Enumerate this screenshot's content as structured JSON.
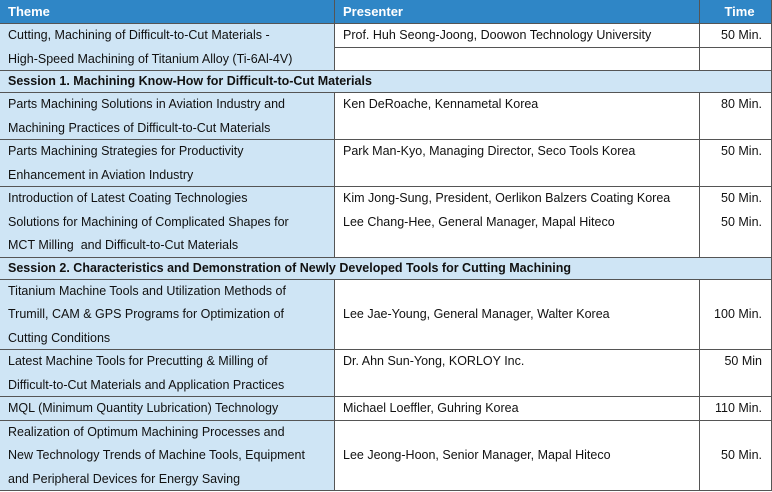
{
  "table": {
    "header": [
      "Theme",
      "Presenter",
      "Time"
    ],
    "rows": [
      {
        "theme": [
          "Cutting, Machining of Difficult-to-Cut Materials -",
          "High-Speed Machining of Titanium Alloy (Ti-6Al-4V)"
        ],
        "presenter": [
          "Prof. Huh Seong-Joong, Doowon Technology University"
        ],
        "time": [
          "50 Min."
        ]
      },
      {
        "session": "Session 1. Machining Know-How for Difficult-to-Cut Materials"
      },
      {
        "theme": [
          "Parts Machining Solutions in Aviation Industry and",
          "Machining Practices of Difficult-to-Cut Materials"
        ],
        "presenter": [
          "Ken DeRoache, Kennametal Korea"
        ],
        "time": [
          "80 Min."
        ]
      },
      {
        "theme": [
          "Parts Machining Strategies for Productivity",
          "Enhancement in Aviation Industry"
        ],
        "presenter": [
          "Park Man-Kyo, Managing Director, Seco Tools Korea"
        ],
        "time": [
          "50 Min."
        ]
      },
      {
        "theme": [
          "Introduction of Latest Coating Technologies",
          "Solutions for Machining of Complicated Shapes for",
          "MCT Milling  and Difficult-to-Cut Materials"
        ],
        "presenter": [
          "Kim Jong-Sung, President, Oerlikon Balzers Coating Korea",
          "Lee Chang-Hee, General Manager, Mapal Hiteco"
        ],
        "time": [
          "50 Min.",
          "50 Min."
        ]
      },
      {
        "session": "Session 2. Characteristics and Demonstration of Newly Developed Tools for Cutting Machining"
      },
      {
        "theme": [
          "Titanium Machine Tools and Utilization Methods of",
          "Trumill, CAM & GPS Programs for Optimization of",
          "Cutting Conditions"
        ],
        "presenter": [
          "Lee Jae-Young, General Manager, Walter Korea"
        ],
        "time": [
          "100 Min."
        ]
      },
      {
        "theme": [
          "Latest Machine Tools for Precutting & Milling of",
          "Difficult-to-Cut Materials and Application Practices"
        ],
        "presenter": [
          "Dr. Ahn Sun-Yong, KORLOY Inc."
        ],
        "time": [
          "50 Min"
        ]
      },
      {
        "theme": [
          "MQL (Minimum Quantity Lubrication) Technology"
        ],
        "presenter": [
          "Michael Loeffler, Guhring Korea"
        ],
        "time": [
          "110 Min."
        ]
      },
      {
        "theme": [
          "Realization of Optimum Machining Processes and",
          "New Technology Trends of Machine Tools, Equipment",
          "and Peripheral Devices for Energy Saving"
        ],
        "presenter": [
          "Lee Jeong-Hoon, Senior Manager, Mapal Hiteco"
        ],
        "time": [
          "50 Min."
        ]
      }
    ]
  }
}
